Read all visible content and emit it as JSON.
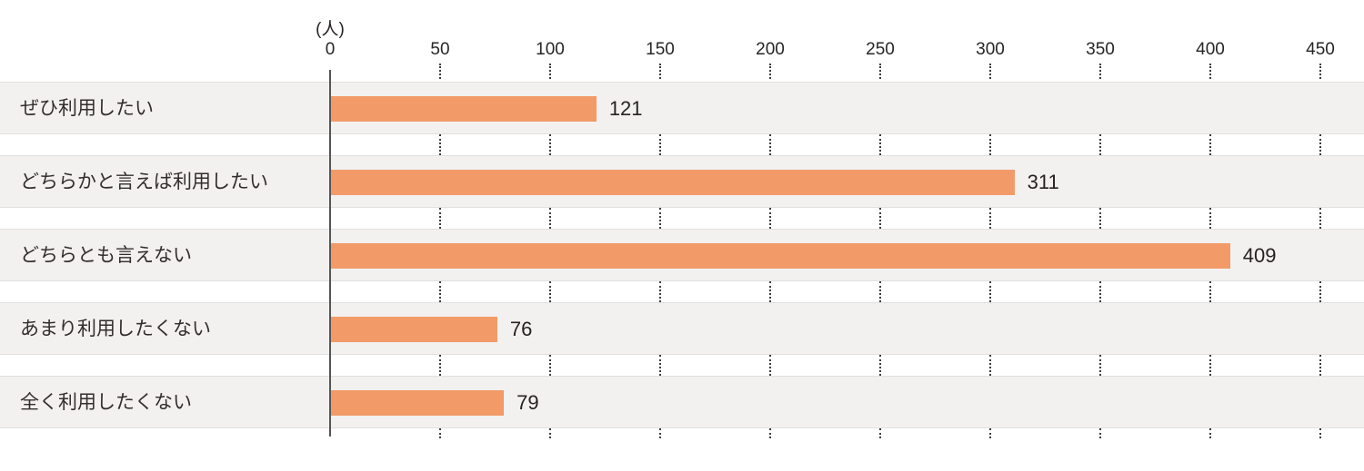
{
  "chart_data": {
    "type": "bar",
    "orientation": "horizontal",
    "title": "",
    "unit_label": "(人)",
    "categories": [
      "ぜひ利用したい",
      "どちらかと言えば利用したい",
      "どちらとも言えない",
      "あまり利用したくない",
      "全く利用したくない"
    ],
    "values": [
      121,
      311,
      409,
      76,
      79
    ],
    "value_labels": [
      "121",
      "311",
      "409",
      "76",
      "79"
    ],
    "xlim": [
      0,
      450
    ],
    "xticks": [
      0,
      50,
      100,
      150,
      200,
      250,
      300,
      350,
      400,
      450
    ],
    "legend": "none",
    "grid": "dotted-vertical-tick-segments",
    "colors": {
      "bar": "#F29A68",
      "row_background": "#F2F1F0",
      "axis_line": "#555555",
      "tick_dots": "#3B3B3B",
      "text": "#332E2B"
    }
  }
}
